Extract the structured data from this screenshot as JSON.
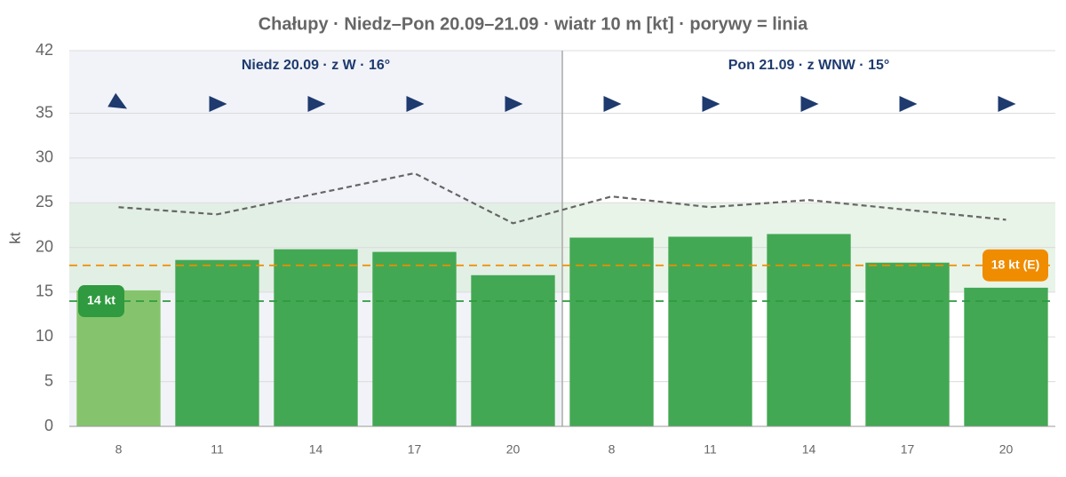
{
  "chart_data": {
    "type": "bar",
    "title": "Chałupy · Niedz–Pon 20.09–21.09 · wiatr 10 m [kt] · porywy = linia",
    "y_label": "kt",
    "categories": [
      8,
      11,
      14,
      17,
      20,
      8,
      11,
      14,
      17,
      20
    ],
    "values": [
      15.2,
      18.6,
      19.8,
      19.5,
      16.9,
      21.1,
      21.2,
      21.5,
      18.3,
      15.5
    ],
    "bar_colors": [
      "#85c46c",
      "#43a853",
      "#43a853",
      "#43a853",
      "#43a853",
      "#43a853",
      "#43a853",
      "#43a853",
      "#43a853",
      "#43a853"
    ],
    "gust_values": [
      24.5,
      23.7,
      26.0,
      28.3,
      22.7,
      25.7,
      24.5,
      25.3,
      24.2,
      23.1
    ],
    "gust_color": "#666666",
    "groups": [
      {
        "label": "Niedz 20.09 · z W · 16°",
        "shade": "#f1f3f8"
      },
      {
        "label": "Pon 21.09 · z WNW · 15°",
        "shade": "#ffffff"
      }
    ],
    "band": [
      15,
      25
    ],
    "band_color": "#d6ebd6",
    "reference_lines": [
      {
        "value": 14,
        "label": "14 kt",
        "color": "#2f9a3f"
      },
      {
        "value": 18,
        "label": "18 kt (E)",
        "color": "#f08c00"
      }
    ],
    "ylim": [
      0,
      42
    ],
    "yticks": [
      0,
      5,
      10,
      15,
      20,
      25,
      30,
      35,
      42
    ],
    "grid": true
  }
}
